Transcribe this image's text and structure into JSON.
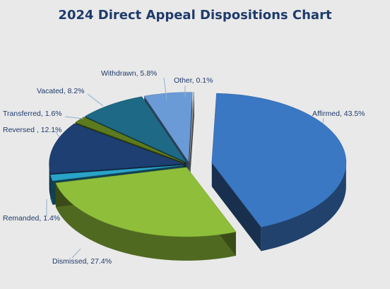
{
  "chart_data": {
    "type": "pie",
    "title": "2024 Direct Appeal Dispositions Chart",
    "style": "3d-exploded",
    "slices": [
      {
        "label": "Affirmed",
        "value": 43.5,
        "value_label": "43.5%",
        "color": "#3b78c4"
      },
      {
        "label": "Dismissed",
        "value": 27.4,
        "value_label": "27.4%",
        "color": "#8fbf3a"
      },
      {
        "label": "Remanded",
        "value": 1.4,
        "value_label": "1.4%",
        "color": "#2aa3c9"
      },
      {
        "label": "Reversed ",
        "value": 12.1,
        "value_label": "12.1%",
        "color": "#1d3f72"
      },
      {
        "label": "Transferred",
        "value": 1.6,
        "value_label": "1.6%",
        "color": "#5c7a1e"
      },
      {
        "label": "Vacated",
        "value": 8.2,
        "value_label": "8.2%",
        "color": "#1e6a86"
      },
      {
        "label": "Withdrawn",
        "value": 5.8,
        "value_label": "5.8%",
        "color": "#6a9bd6"
      },
      {
        "label": "Other",
        "value": 0.1,
        "value_label": "0.1%",
        "color": "#b9b9b9"
      }
    ]
  }
}
